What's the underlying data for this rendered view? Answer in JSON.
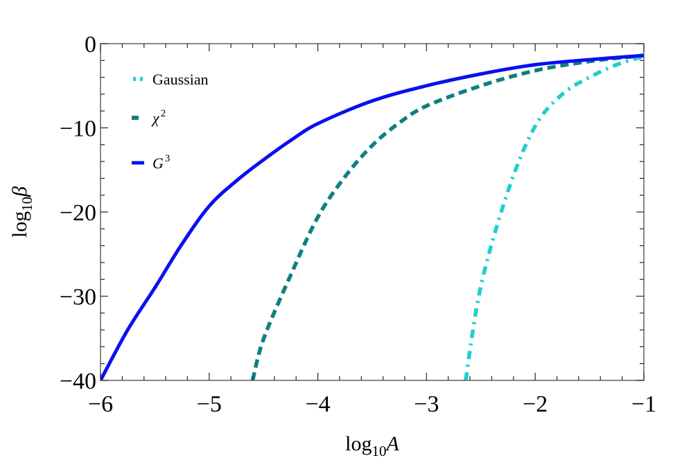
{
  "chart_data": {
    "type": "line",
    "title": "",
    "xlabel": "log10 A",
    "ylabel": "log10 β",
    "xlabel_parts": {
      "main": "log",
      "sub": "10",
      "var": "A"
    },
    "ylabel_parts": {
      "main": "log",
      "sub": "10",
      "var": "β"
    },
    "xlim": [
      -6,
      -1
    ],
    "ylim": [
      -40,
      0
    ],
    "x_ticks": [
      -6,
      -5,
      -4,
      -3,
      -2,
      -1
    ],
    "x_tick_labels": [
      "−6",
      "−5",
      "−4",
      "−3",
      "−2",
      "−1"
    ],
    "y_ticks": [
      0,
      -10,
      -20,
      -30,
      -40
    ],
    "y_tick_labels": [
      "0",
      "−10",
      "−20",
      "−30",
      "−40"
    ],
    "x_minor_step": 0.2,
    "y_minor_step": 2,
    "grid": false,
    "legend_position": "upper left",
    "series": [
      {
        "name": "Gaussian",
        "label_main": "Gaussian",
        "label_sup": "",
        "style": "dash-dot",
        "color": "#1fcfcf",
        "x": [
          -2.64,
          -2.5,
          -2.25,
          -2.0,
          -1.75,
          -1.5,
          -1.25,
          -1.0
        ],
        "y": [
          -40,
          -28.8,
          -17.5,
          -9.8,
          -6.0,
          -4.0,
          -2.5,
          -1.5
        ]
      },
      {
        "name": "χ²",
        "label_main": "χ",
        "label_sup": "2",
        "style": "dashed",
        "color": "#0f8080",
        "x": [
          -4.6,
          -4.5,
          -4.25,
          -4.0,
          -3.75,
          -3.5,
          -3.25,
          -3.0,
          -2.5,
          -2.0,
          -1.5,
          -1.0
        ],
        "y": [
          -40,
          -35.1,
          -27.5,
          -20.6,
          -15.8,
          -12.1,
          -9.4,
          -7.4,
          -5.0,
          -3.2,
          -2.1,
          -1.4
        ]
      },
      {
        "name": "G³",
        "label_main": "G",
        "label_sup": "3",
        "style": "solid",
        "color": "#0a10f0",
        "x": [
          -6.0,
          -5.75,
          -5.5,
          -5.25,
          -5.0,
          -4.75,
          -4.5,
          -4.25,
          -4.0,
          -3.5,
          -3.0,
          -2.5,
          -2.0,
          -1.5,
          -1.0
        ],
        "y": [
          -40,
          -34.0,
          -29.0,
          -23.8,
          -19.3,
          -16.3,
          -13.8,
          -11.5,
          -9.5,
          -6.8,
          -5.0,
          -3.6,
          -2.5,
          -1.9,
          -1.4
        ]
      }
    ]
  }
}
